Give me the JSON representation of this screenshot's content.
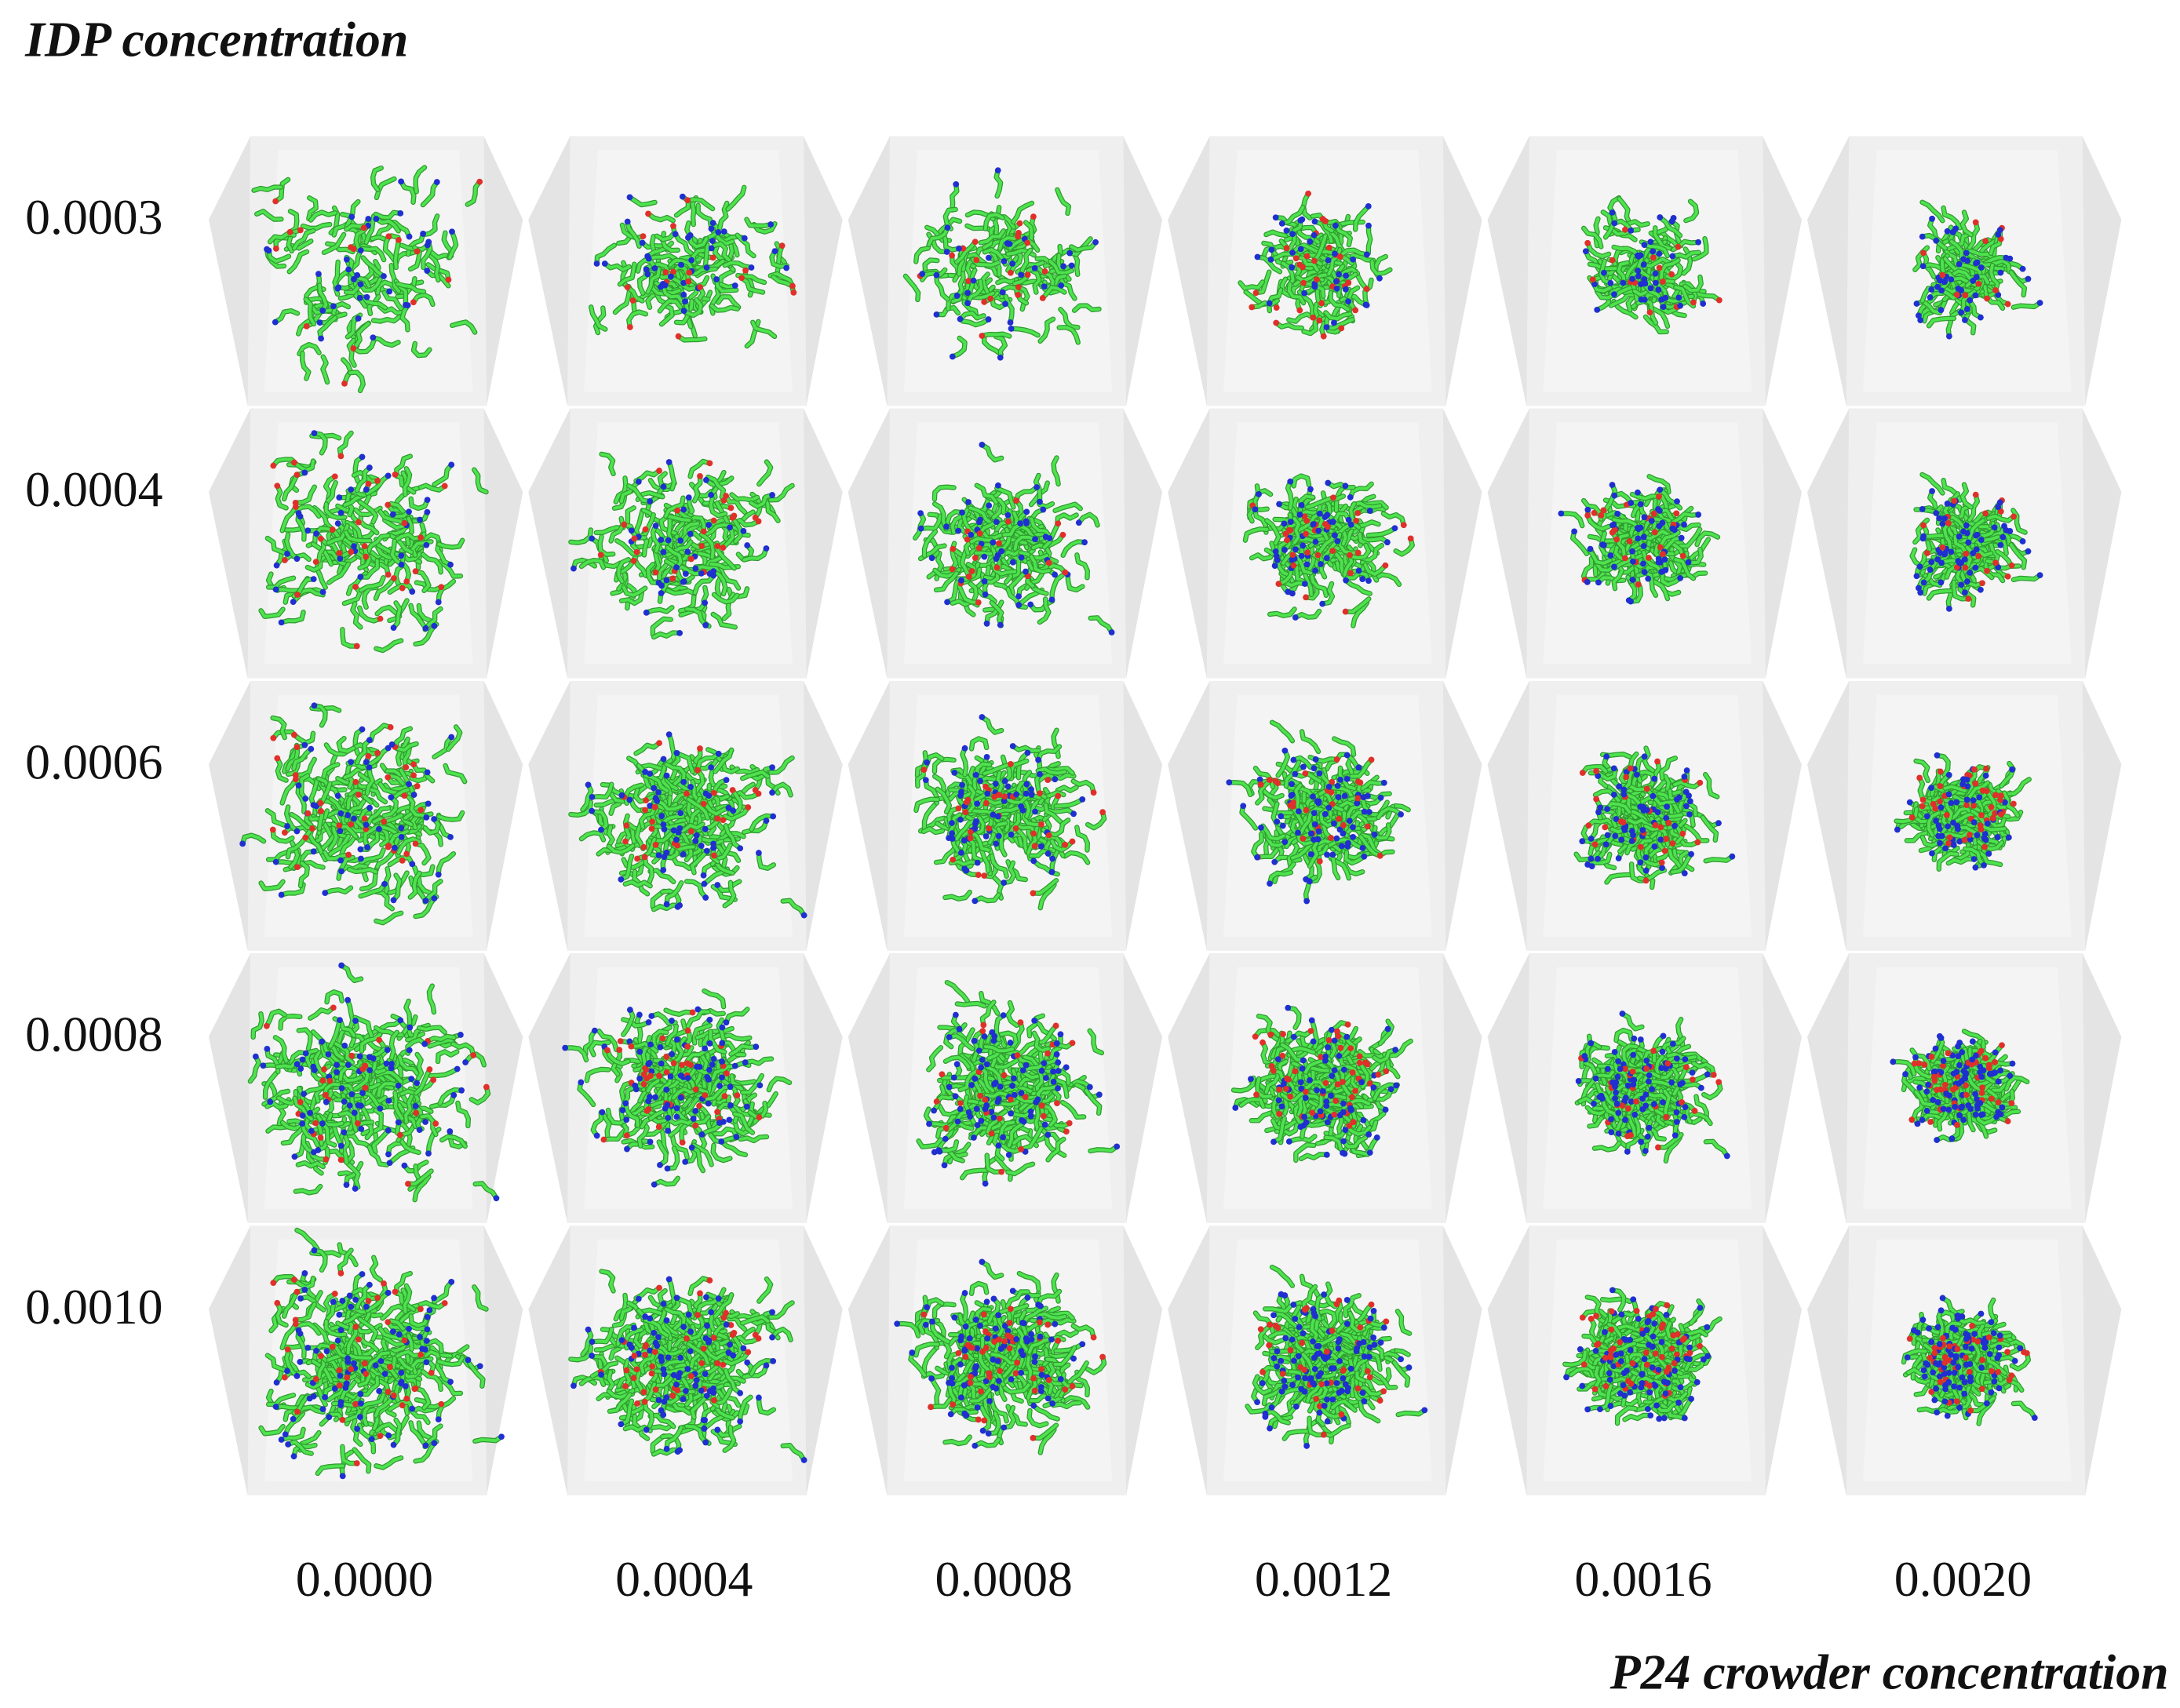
{
  "title": "IDP concentration",
  "row_labels": [
    "0.0003",
    "0.0004",
    "0.0006",
    "0.0008",
    "0.0010"
  ],
  "column_labels": [
    "0.0000",
    "0.0004",
    "0.0008",
    "0.0012",
    "0.0016",
    "0.0020"
  ],
  "x_axis_label": "P24 crowder concentration"
}
